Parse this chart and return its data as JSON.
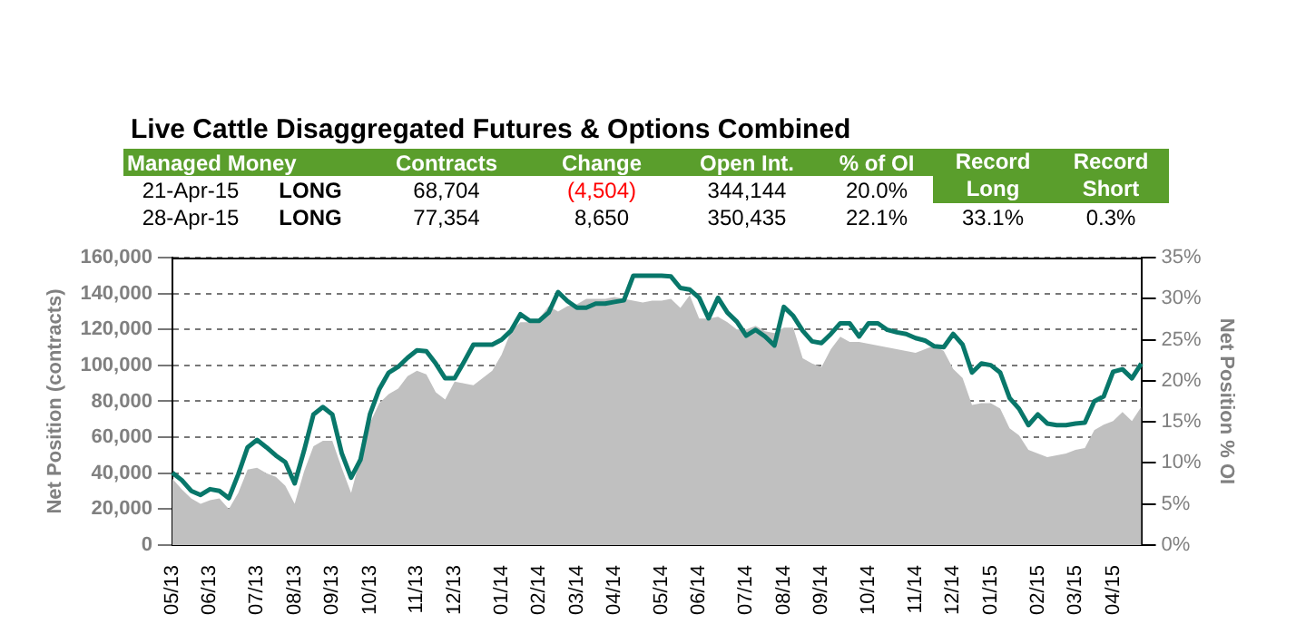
{
  "chart_data": {
    "type": "area",
    "title": "Live Cattle Disaggregated Futures & Options Combined",
    "annotations": [
      "Managed Money",
      "Contracts",
      "Change",
      "Open Int.",
      "% of OI",
      "Record Long",
      "Record Short",
      "21-Apr-15",
      "LONG",
      "68,704",
      "(4,504)",
      "344,144",
      "20.0%",
      "28-Apr-15",
      "LONG",
      "77,354",
      "8,650",
      "350,435",
      "22.1%",
      "33.1%",
      "0.3%"
    ],
    "ylabel": "Net Position (contracts)",
    "y2label": "Net Position % OI",
    "categories": [
      "05/13",
      null,
      null,
      null,
      "06/13",
      null,
      null,
      null,
      null,
      "07/13",
      null,
      null,
      null,
      "08/13",
      null,
      null,
      null,
      "09/13",
      null,
      null,
      null,
      "10/13",
      null,
      null,
      null,
      null,
      "11/13",
      null,
      null,
      null,
      "12/13",
      null,
      null,
      null,
      null,
      "01/14",
      null,
      null,
      null,
      "02/14",
      null,
      null,
      null,
      "03/14",
      null,
      null,
      null,
      "04/14",
      null,
      null,
      null,
      null,
      "05/14",
      null,
      null,
      null,
      "06/14",
      null,
      null,
      null,
      null,
      "07/14",
      null,
      null,
      null,
      "08/14",
      null,
      null,
      null,
      "09/14",
      null,
      null,
      null,
      null,
      "10/14",
      null,
      null,
      null,
      null,
      "11/14",
      null,
      null,
      null,
      "12/14",
      null,
      null,
      null,
      "01/15",
      null,
      null,
      null,
      null,
      "02/15",
      null,
      null,
      null,
      "03/15",
      null,
      null,
      null,
      "04/15",
      null,
      null,
      null
    ],
    "series": [
      {
        "color": "#c0c0c0",
        "values": [
          37000,
          31000,
          26000,
          23000,
          25000,
          26000,
          20000,
          29000,
          42000,
          43000,
          40000,
          38000,
          33000,
          23000,
          41000,
          55000,
          58000,
          58000,
          43000,
          29000,
          49000,
          68000,
          79000,
          84000,
          87000,
          94000,
          97000,
          95000,
          85000,
          81000,
          91000,
          90000,
          89000,
          93000,
          97000,
          106000,
          119000,
          124000,
          124000,
          126000,
          133000,
          130000,
          133000,
          134000,
          137000,
          137000,
          137000,
          138000,
          137000,
          136000,
          135000,
          136000,
          136000,
          137000,
          132000,
          139000,
          126000,
          126000,
          127000,
          124000,
          120000,
          120000,
          122000,
          119000,
          118000,
          121000,
          121000,
          104000,
          101000,
          99000,
          109000,
          116000,
          113000,
          113000,
          112000,
          111000,
          110000,
          109000,
          108000,
          107000,
          109000,
          111000,
          108000,
          98000,
          93000,
          78000,
          79000,
          79000,
          76000,
          65000,
          61000,
          53000,
          51000,
          49000,
          50000,
          51000,
          53000,
          54000,
          64000,
          67000,
          69000,
          74000,
          69000,
          77000
        ]
      },
      {
        "type": "line",
        "axis": "y2",
        "color": "#08776a",
        "values": [
          8.8,
          7.9,
          6.6,
          6.1,
          6.8,
          6.6,
          5.7,
          8.6,
          11.9,
          12.8,
          11.9,
          10.9,
          10.1,
          7.5,
          11.5,
          15.9,
          16.8,
          15.9,
          11.2,
          8.2,
          10.4,
          15.9,
          19.0,
          21.0,
          21.7,
          22.8,
          23.7,
          23.6,
          22.1,
          20.3,
          20.3,
          22.3,
          24.4,
          24.4,
          24.4,
          25.0,
          26.1,
          28.1,
          27.3,
          27.3,
          28.3,
          30.8,
          29.7,
          28.9,
          28.9,
          29.4,
          29.4,
          29.6,
          29.8,
          32.8,
          32.8,
          32.8,
          32.8,
          32.7,
          31.3,
          31.1,
          30.1,
          27.6,
          30.1,
          28.3,
          27.2,
          25.5,
          26.2,
          25.4,
          24.3,
          29.0,
          27.9,
          26.1,
          24.8,
          24.6,
          25.7,
          27.0,
          27.0,
          25.4,
          27.0,
          27.0,
          26.2,
          25.9,
          25.7,
          25.2,
          24.9,
          24.2,
          24.1,
          25.7,
          24.4,
          21.0,
          22.1,
          21.9,
          21.0,
          17.9,
          16.6,
          14.6,
          15.9,
          14.8,
          14.6,
          14.6,
          14.8,
          14.9,
          17.5,
          18.1,
          21.1,
          21.4,
          20.3,
          22.1
        ]
      }
    ],
    "ylim": [
      0,
      160000
    ],
    "yticks": [
      0,
      {
        "value": 20000,
        "label": "20,000"
      },
      {
        "value": 40000,
        "label": "40,000"
      },
      {
        "value": 60000,
        "label": "60,000"
      },
      {
        "value": 80000,
        "label": "80,000"
      },
      {
        "value": 100000,
        "label": "100,000"
      },
      {
        "value": 120000,
        "label": "120,000"
      },
      {
        "value": 140000,
        "label": "140,000"
      },
      {
        "value": 160000,
        "label": "160,000"
      }
    ],
    "y2lim": [
      0,
      35
    ],
    "y2ticks": [
      {
        "value": 0,
        "label": "0%"
      },
      {
        "value": 5,
        "label": "5%"
      },
      {
        "value": 10,
        "label": "10%"
      },
      {
        "value": 15,
        "label": "15%"
      },
      {
        "value": 20,
        "label": "20%"
      },
      {
        "value": 25,
        "label": "25%"
      },
      {
        "value": 30,
        "label": "30%"
      },
      {
        "value": 35,
        "label": "35%"
      }
    ],
    "grid": "y",
    "marker": "none"
  }
}
